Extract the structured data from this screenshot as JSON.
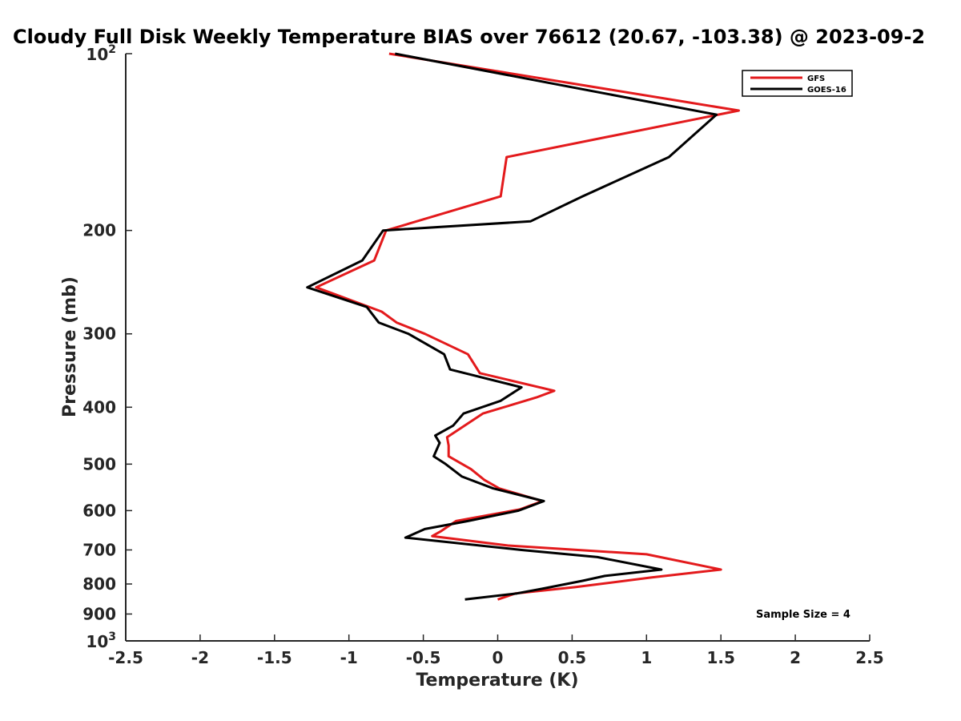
{
  "chart_data": {
    "type": "line",
    "title": "Cloudy Full Disk Weekly Temperature BIAS over 76612 (20.67, -103.38) @ 2023-09-2",
    "xlabel": "Temperature (K)",
    "ylabel": "Pressure (mb)",
    "xlim": [
      -2.5,
      2.5
    ],
    "ylim": [
      100,
      1000
    ],
    "y_scale": "log",
    "y_reversed": true,
    "grid": false,
    "legend_position": "top-right",
    "x_ticks": [
      -2.5,
      -2,
      -1.5,
      -1,
      -0.5,
      0,
      0.5,
      1,
      1.5,
      2,
      2.5
    ],
    "x_tick_labels": [
      "-2.5",
      "-2",
      "-1.5",
      "-1",
      "-0.5",
      "0",
      "0.5",
      "1",
      "1.5",
      "2",
      "2.5"
    ],
    "y_ticks": [
      {
        "value": 100,
        "label": "10",
        "sup": "2"
      },
      {
        "value": 200,
        "label": "200"
      },
      {
        "value": 300,
        "label": "300"
      },
      {
        "value": 400,
        "label": "400"
      },
      {
        "value": 500,
        "label": "500"
      },
      {
        "value": 600,
        "label": "600"
      },
      {
        "value": 700,
        "label": "700"
      },
      {
        "value": 800,
        "label": "800"
      },
      {
        "value": 900,
        "label": "900"
      },
      {
        "value": 1000,
        "label": "10",
        "sup": "3"
      }
    ],
    "series": [
      {
        "name": "GFS",
        "color": "#e31a1c",
        "points": [
          [
            -0.73,
            100
          ],
          [
            1.62,
            125
          ],
          [
            0.06,
            150
          ],
          [
            0.02,
            175
          ],
          [
            -0.75,
            200
          ],
          [
            -0.83,
            225
          ],
          [
            -1.22,
            250
          ],
          [
            -0.78,
            275
          ],
          [
            -0.68,
            287
          ],
          [
            -0.49,
            300
          ],
          [
            -0.2,
            325
          ],
          [
            -0.12,
            350
          ],
          [
            0.38,
            375
          ],
          [
            0.26,
            385
          ],
          [
            -0.1,
            410
          ],
          [
            -0.34,
            450
          ],
          [
            -0.33,
            465
          ],
          [
            -0.33,
            485
          ],
          [
            -0.18,
            510
          ],
          [
            -0.09,
            532
          ],
          [
            0.01,
            550
          ],
          [
            0.3,
            578
          ],
          [
            0.15,
            597
          ],
          [
            -0.28,
            625
          ],
          [
            -0.38,
            650
          ],
          [
            -0.44,
            663
          ],
          [
            0.07,
            688
          ],
          [
            1.0,
            712
          ],
          [
            1.5,
            756
          ],
          [
            1.03,
            780
          ],
          [
            0.52,
            810
          ],
          [
            0.12,
            830
          ],
          [
            0.0,
            850
          ]
        ]
      },
      {
        "name": "GOES-16",
        "color": "#000000",
        "points": [
          [
            -0.69,
            100
          ],
          [
            1.47,
            127
          ],
          [
            1.15,
            150
          ],
          [
            0.57,
            175
          ],
          [
            0.22,
            193
          ],
          [
            -0.77,
            200
          ],
          [
            -0.91,
            225
          ],
          [
            -1.28,
            250
          ],
          [
            -0.88,
            270
          ],
          [
            -0.8,
            287
          ],
          [
            -0.6,
            300
          ],
          [
            -0.36,
            325
          ],
          [
            -0.32,
            345
          ],
          [
            0.16,
            370
          ],
          [
            0.02,
            390
          ],
          [
            -0.23,
            410
          ],
          [
            -0.3,
            430
          ],
          [
            -0.42,
            447
          ],
          [
            -0.39,
            460
          ],
          [
            -0.43,
            485
          ],
          [
            -0.35,
            500
          ],
          [
            -0.24,
            525
          ],
          [
            -0.03,
            550
          ],
          [
            0.31,
            578
          ],
          [
            0.14,
            600
          ],
          [
            -0.2,
            625
          ],
          [
            -0.49,
            645
          ],
          [
            -0.62,
            667
          ],
          [
            0.16,
            700
          ],
          [
            0.67,
            720
          ],
          [
            1.1,
            756
          ],
          [
            0.72,
            775
          ],
          [
            0.57,
            790
          ],
          [
            0.3,
            815
          ],
          [
            0.13,
            830
          ],
          [
            -0.22,
            850
          ]
        ]
      }
    ],
    "annotation": "Sample Size = 4"
  }
}
